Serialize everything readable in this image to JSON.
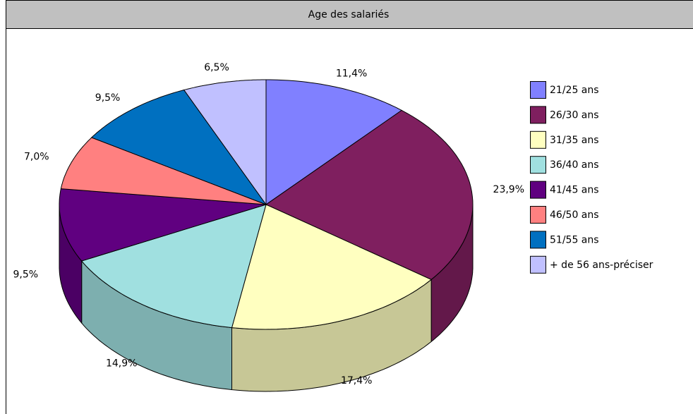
{
  "chart_data": {
    "type": "pie",
    "title": "Age des salariés",
    "categories": [
      "21/25 ans",
      "26/30 ans",
      "31/35 ans",
      "36/40 ans",
      "41/45 ans",
      "46/50 ans",
      "51/55 ans",
      "+ de 56 ans-préciser"
    ],
    "values": [
      11.4,
      23.9,
      17.4,
      14.9,
      9.5,
      7.0,
      9.5,
      6.5
    ],
    "value_labels": [
      "11,4%",
      "23,9%",
      "17,4%",
      "14,9%",
      "9,5%",
      "7,0%",
      "9,5%",
      "6,5%"
    ],
    "colors": [
      "#8080ff",
      "#7f1f5f",
      "#ffffc0",
      "#a0e0e0",
      "#600080",
      "#ff8080",
      "#0070c0",
      "#c0c0ff"
    ],
    "legend": "right"
  }
}
